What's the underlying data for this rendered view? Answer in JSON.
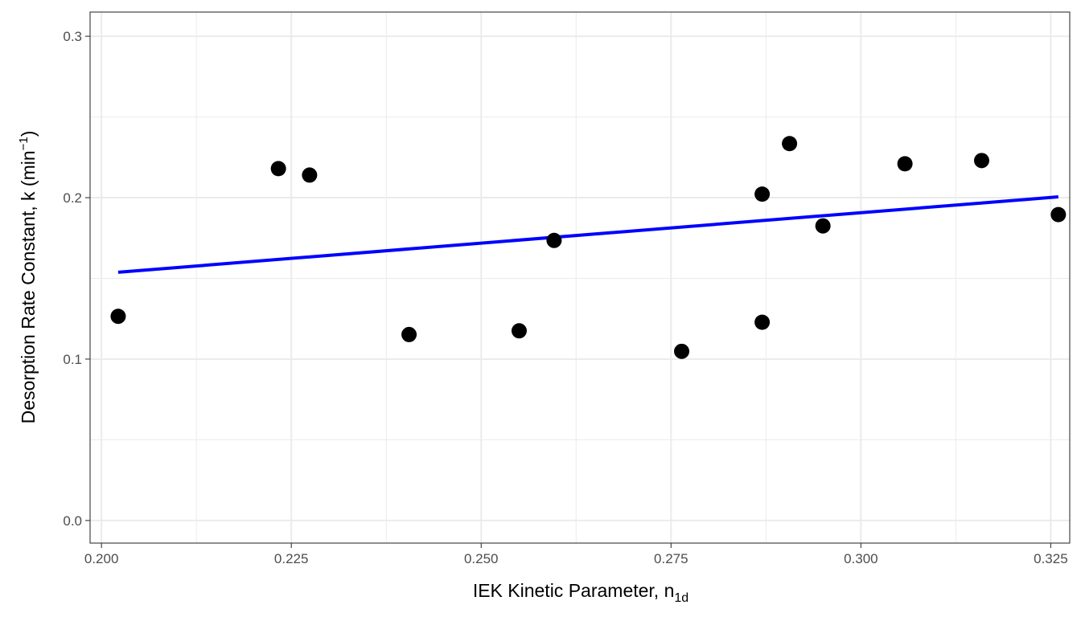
{
  "chart_data": {
    "type": "scatter",
    "title": "",
    "xlabel": {
      "main": "IEK Kinetic Parameter, n",
      "subscript": "1d"
    },
    "ylabel": {
      "main": "Desorption Rate Constant, k (min",
      "superscript": "−1",
      "suffix": ")"
    },
    "xlim": [
      0.1985,
      0.3275
    ],
    "ylim": [
      -0.014,
      0.315
    ],
    "x_ticks": [
      0.2,
      0.225,
      0.25,
      0.275,
      0.3,
      0.325
    ],
    "x_tick_labels": [
      "0.200",
      "0.225",
      "0.250",
      "0.275",
      "0.300",
      "0.325"
    ],
    "x_minor_ticks": [
      0.2125,
      0.2375,
      0.2625,
      0.2875,
      0.3125
    ],
    "y_ticks": [
      0,
      0.1,
      0.2,
      0.3
    ],
    "y_tick_labels": [
      "0.0",
      "0.1",
      "0.2",
      "0.3"
    ],
    "y_minor_ticks": [
      0.05,
      0.15,
      0.25
    ],
    "grid": true,
    "points": [
      {
        "x": 0.2022,
        "y": 0.1265
      },
      {
        "x": 0.2233,
        "y": 0.218
      },
      {
        "x": 0.2274,
        "y": 0.214
      },
      {
        "x": 0.2405,
        "y": 0.1152
      },
      {
        "x": 0.255,
        "y": 0.1175
      },
      {
        "x": 0.2596,
        "y": 0.1735
      },
      {
        "x": 0.2764,
        "y": 0.1048
      },
      {
        "x": 0.287,
        "y": 0.2022
      },
      {
        "x": 0.287,
        "y": 0.1228
      },
      {
        "x": 0.2906,
        "y": 0.2335
      },
      {
        "x": 0.295,
        "y": 0.1825
      },
      {
        "x": 0.3058,
        "y": 0.221
      },
      {
        "x": 0.3159,
        "y": 0.223
      },
      {
        "x": 0.326,
        "y": 0.1895
      }
    ],
    "trendline": {
      "x": [
        0.2022,
        0.326
      ],
      "y": [
        0.1538,
        0.2005
      ]
    },
    "colors": {
      "points": "#000000",
      "trendline": "#0000ff",
      "grid": "#ebebeb",
      "panel_border": "#333333"
    }
  }
}
